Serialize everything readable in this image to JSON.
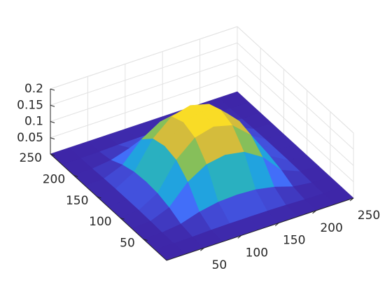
{
  "chart_data": {
    "type": "surface",
    "x": [
      0,
      25,
      50,
      75,
      100,
      125,
      150,
      175,
      200,
      225,
      250
    ],
    "y": [
      0,
      25,
      50,
      75,
      100,
      125,
      150,
      175,
      200,
      225,
      250
    ],
    "z": [
      [
        0,
        0,
        0,
        0,
        0,
        0,
        0,
        0,
        0,
        0,
        0
      ],
      [
        0,
        0,
        0.001,
        0.003,
        0.004,
        0.004,
        0.004,
        0.003,
        0.001,
        0,
        0
      ],
      [
        0,
        0.001,
        0.008,
        0.026,
        0.037,
        0.04,
        0.037,
        0.026,
        0.008,
        0.001,
        0
      ],
      [
        0,
        0.003,
        0.026,
        0.085,
        0.12,
        0.13,
        0.12,
        0.085,
        0.026,
        0.003,
        0
      ],
      [
        0,
        0.004,
        0.037,
        0.12,
        0.169,
        0.184,
        0.169,
        0.12,
        0.037,
        0.004,
        0
      ],
      [
        0,
        0.004,
        0.04,
        0.13,
        0.184,
        0.2,
        0.184,
        0.13,
        0.04,
        0.004,
        0
      ],
      [
        0,
        0.004,
        0.037,
        0.12,
        0.169,
        0.184,
        0.169,
        0.12,
        0.037,
        0.004,
        0
      ],
      [
        0,
        0.003,
        0.026,
        0.085,
        0.12,
        0.13,
        0.12,
        0.085,
        0.026,
        0.003,
        0
      ],
      [
        0,
        0.001,
        0.008,
        0.026,
        0.037,
        0.04,
        0.037,
        0.026,
        0.008,
        0.001,
        0
      ],
      [
        0,
        0,
        0.001,
        0.003,
        0.004,
        0.004,
        0.004,
        0.003,
        0.001,
        0,
        0
      ],
      [
        0,
        0,
        0,
        0,
        0,
        0,
        0,
        0,
        0,
        0,
        0
      ]
    ],
    "xlim": [
      0,
      250
    ],
    "ylim": [
      0,
      250
    ],
    "zlim": [
      0,
      0.2
    ],
    "xticks": [
      50,
      100,
      150,
      200,
      250
    ],
    "yticks": [
      50,
      100,
      150,
      200,
      250
    ],
    "zticks": [
      0.05,
      0.1,
      0.15,
      0.2
    ],
    "grid": true,
    "colormap": [
      "#3e26a8",
      "#4569fb",
      "#21a3e0",
      "#34bf99",
      "#a9bf3f",
      "#fbba3a",
      "#f8fa14"
    ]
  }
}
